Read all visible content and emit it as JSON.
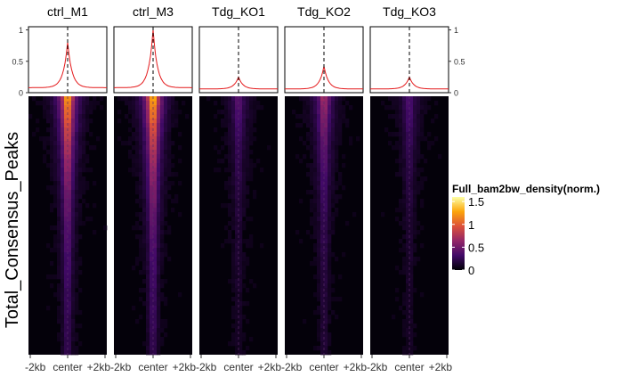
{
  "chart_data": {
    "type": "heatmap",
    "ylabel": "Total_Consensus_Peaks",
    "x_ticks": [
      "-2kb",
      "center",
      "+2kb"
    ],
    "profile_y_ticks": [
      "0",
      "0.5",
      "1"
    ],
    "profile_ylim": [
      0,
      1.05
    ],
    "legend": {
      "title": "Full_bam2bw_density(norm.)",
      "ticks": [
        "0",
        "0.5",
        "1",
        "1.5"
      ],
      "range": [
        0,
        1.6
      ],
      "placement": "right",
      "colors": [
        "#000004",
        "#420a68",
        "#932667",
        "#dd513a",
        "#fca50a",
        "#fcffa4"
      ]
    },
    "profile_color": "#e41a1c",
    "center_line": "dashed",
    "series": [
      {
        "name": "ctrl_M1",
        "profile_peak": 0.8,
        "profile_base": 0.08,
        "heat_peak": 1.5
      },
      {
        "name": "ctrl_M3",
        "profile_peak": 1.0,
        "profile_base": 0.08,
        "heat_peak": 1.6
      },
      {
        "name": "Tdg_KO1",
        "profile_peak": 0.25,
        "profile_base": 0.06,
        "heat_peak": 0.45
      },
      {
        "name": "Tdg_KO2",
        "profile_peak": 0.42,
        "profile_base": 0.06,
        "heat_peak": 0.8
      },
      {
        "name": "Tdg_KO3",
        "profile_peak": 0.25,
        "profile_base": 0.06,
        "heat_peak": 0.4
      }
    ]
  }
}
